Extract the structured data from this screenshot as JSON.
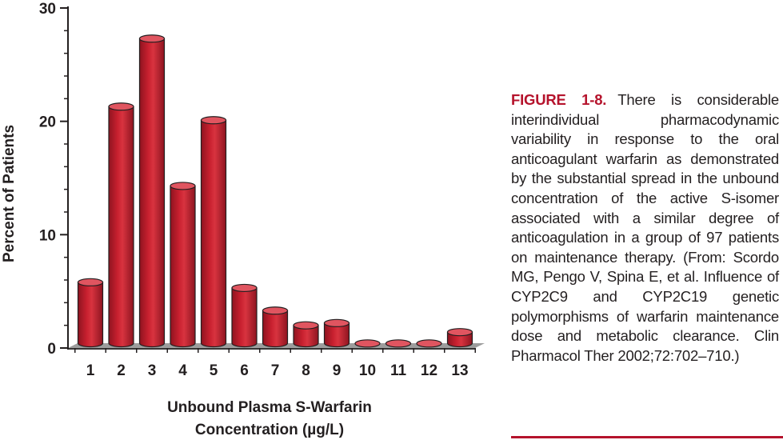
{
  "caption": {
    "label": "FIGURE 1-8.",
    "text": "There is considerable interindividual pharmacodynamic variability in response to the oral anticoagulant warfarin as demonstrated by the substantial spread in the unbound concentration of the active S-isomer associated with a similar degree of anticoagulation in a group of 97 patients on maintenance therapy. (From: Scordo MG, Pengo V, Spina E, et al. Influence of CYP2C9 and CYP2C19 genetic polymorphisms of warfarin maintenance dose and metabolic clearance. Clin Pharmacol Ther 2002;72:702–710.)"
  },
  "colors": {
    "bar_fill": "#c8202f",
    "bar_dark": "#8e1420",
    "bar_top": "#e05560",
    "floor": "#9d9d9d",
    "accent": "#b5132c"
  },
  "chart_data": {
    "type": "bar",
    "categories": [
      "1",
      "2",
      "3",
      "4",
      "5",
      "6",
      "7",
      "8",
      "9",
      "10",
      "11",
      "12",
      "13"
    ],
    "values": [
      5.8,
      21.3,
      27.3,
      14.3,
      20.1,
      5.3,
      3.3,
      2.0,
      2.2,
      0.4,
      0.4,
      0.4,
      1.4
    ],
    "xlabel": [
      "Unbound Plasma S-Warfarin",
      "Concentration (µg/L)"
    ],
    "ylabel": "Percent of Patients",
    "yticks": [
      0,
      10,
      20,
      30
    ],
    "ylim": [
      0,
      30
    ],
    "grid": false,
    "legend": "none"
  }
}
